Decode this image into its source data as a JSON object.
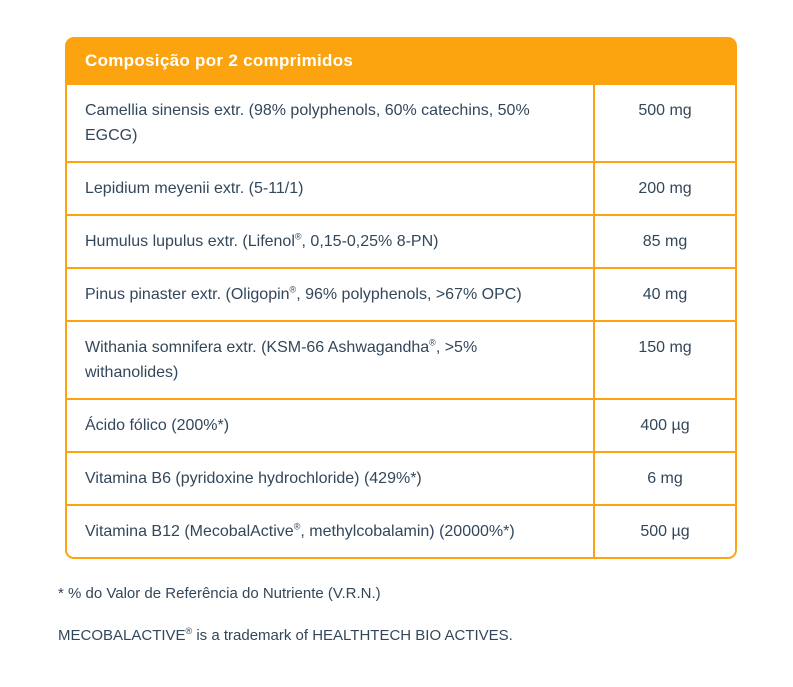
{
  "table": {
    "header": "Composição por 2 comprimidos",
    "rows": [
      {
        "name": "Camellia sinensis extr. (98% polyphenols, 60% catechins, 50% EGCG)",
        "amount": "500 mg"
      },
      {
        "name": "Lepidium meyenii extr. (5-11/1)",
        "amount": "200 mg"
      },
      {
        "name": "Humulus lupulus extr. (Lifenol®, 0,15-0,25% 8-PN)",
        "amount": "85 mg"
      },
      {
        "name": "Pinus pinaster extr. (Oligopin®, 96% polyphenols, >67% OPC)",
        "amount": "40 mg"
      },
      {
        "name": "Withania somnifera extr. (KSM-66 Ashwagandha®, >5% withanolides)",
        "amount": "150 mg"
      },
      {
        "name": "Ácido fólico (200%*)",
        "amount": "400 µg"
      },
      {
        "name": "Vitamina B6 (pyridoxine hydrochloride) (429%*)",
        "amount": "6 mg"
      },
      {
        "name": "Vitamina B12 (MecobalActive®, methylcobalamin) (20000%*)",
        "amount": "500 µg"
      }
    ]
  },
  "notes": [
    "* % do Valor de Referência do Nutriente (V.R.N.)",
    "MECOBALACTIVE® is a trademark of HEALTHTECH BIO ACTIVES."
  ],
  "colors": {
    "accent_orange": "#fca410",
    "text_dark": "#33475b",
    "background": "#ffffff",
    "header_text": "#ffffff"
  }
}
